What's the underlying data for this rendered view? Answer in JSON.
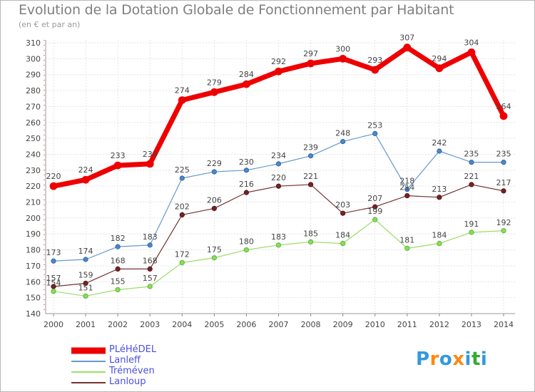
{
  "chart_data": {
    "type": "line",
    "title": "Evolution de la Dotation Globale de Fonctionnement par Habitant",
    "subtitle": "(en € et par an)",
    "xlabel": "",
    "ylabel": "",
    "ylim": [
      140,
      310
    ],
    "yticks": [
      140,
      150,
      160,
      170,
      180,
      190,
      200,
      210,
      220,
      230,
      240,
      250,
      260,
      270,
      280,
      290,
      300,
      310
    ],
    "categories": [
      "2000",
      "2001",
      "2002",
      "2003",
      "2004",
      "2005",
      "2006",
      "2007",
      "2008",
      "2009",
      "2010",
      "2011",
      "2012",
      "2013",
      "2014"
    ],
    "grid": true,
    "legend_position": "bottom-left",
    "series": [
      {
        "name": "PLéHéDEL",
        "color": "#ee0000",
        "values": [
          220,
          224,
          233,
          234,
          274,
          279,
          284,
          292,
          297,
          300,
          293,
          307,
          294,
          304,
          264
        ]
      },
      {
        "name": "Lanleff",
        "color": "#6699cc",
        "values": [
          173,
          174,
          182,
          183,
          225,
          229,
          230,
          234,
          239,
          248,
          253,
          218,
          242,
          235,
          235
        ]
      },
      {
        "name": "Tréméven",
        "color": "#99dd66",
        "values": [
          154,
          151,
          155,
          157,
          172,
          175,
          180,
          183,
          185,
          184,
          199,
          181,
          184,
          191,
          192
        ]
      },
      {
        "name": "Lanloup",
        "color": "#773333",
        "values": [
          157,
          159,
          168,
          168,
          202,
          206,
          216,
          220,
          221,
          203,
          207,
          214,
          213,
          221,
          217
        ]
      }
    ]
  },
  "logo": {
    "text": "Proxiti",
    "letters": [
      "P",
      "r",
      "o",
      "x",
      "i",
      "t",
      "i"
    ],
    "colors": [
      "#3399dd",
      "#ff8811",
      "#3399dd",
      "#ff8811",
      "#3399dd",
      "#33aa33",
      "#3399dd"
    ]
  }
}
